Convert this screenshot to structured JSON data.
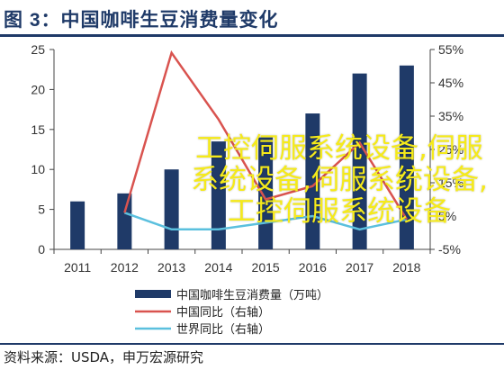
{
  "title": "图 3：中国咖啡生豆消费量变化",
  "source": "资料来源：USDA，申万宏源研究",
  "watermark": "工控伺服系统设备,伺服系统设备,伺服系统设备,工控伺服系统设备",
  "colors": {
    "title": "#1f3a68",
    "bar": "#1f3a68",
    "china_yoy": "#d9534f",
    "world_yoy": "#5bc0de"
  },
  "chart_data": {
    "type": "bar",
    "categories": [
      "2011",
      "2012",
      "2013",
      "2014",
      "2015",
      "2016",
      "2017",
      "2018"
    ],
    "left_axis": {
      "min": 0,
      "max": 25,
      "ticks": [
        "0",
        "5",
        "10",
        "15",
        "20",
        "25"
      ]
    },
    "right_axis": {
      "min": -5,
      "max": 55,
      "ticks": [
        "-5%",
        "5%",
        "15%",
        "25%",
        "35%",
        "45%",
        "55%"
      ]
    },
    "series": [
      {
        "name": "中国咖啡生豆消费量（万吨）",
        "type": "bar",
        "axis": "left",
        "values": [
          6,
          7,
          10,
          13.5,
          14,
          17,
          22,
          23
        ]
      },
      {
        "name": "中国同比（右轴）",
        "type": "line",
        "axis": "right",
        "values": [
          null,
          6,
          54,
          34,
          10,
          14,
          27,
          4
        ]
      },
      {
        "name": "世界同比（右轴）",
        "type": "line",
        "axis": "right",
        "values": [
          null,
          6,
          1,
          1,
          3,
          5,
          1,
          4
        ]
      }
    ],
    "legend_position": "bottom",
    "grid": false
  }
}
